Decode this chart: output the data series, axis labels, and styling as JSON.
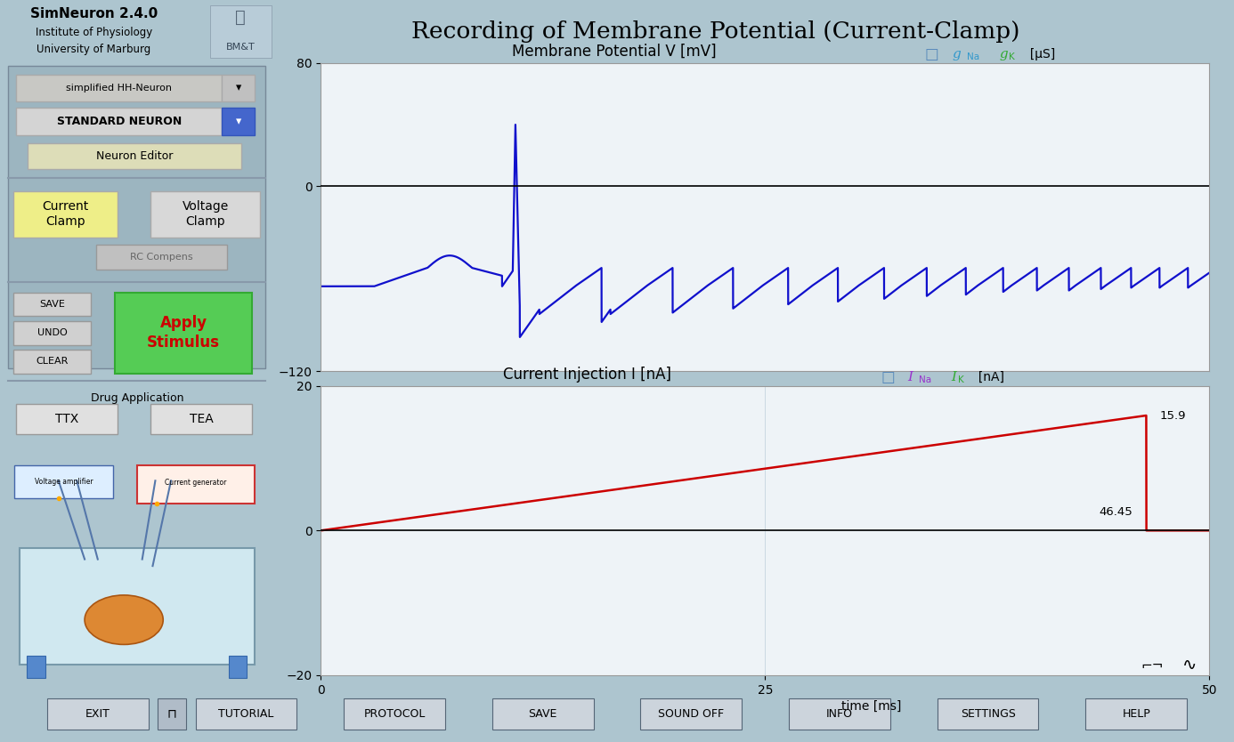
{
  "title": "Recording of Membrane Potential (Current-Clamp)",
  "bg_color": "#adc5cf",
  "plot_bg_color": "#eef3f7",
  "grid_color": "#c5d5de",
  "header_bg": "#b8ccd8",
  "panel_bg": "#adc5cf",
  "panel_inner_bg": "#9fb8c4",
  "top_plot": {
    "title": "Membrane Potential V [mV]",
    "ylim": [
      -120,
      80
    ],
    "yticks": [
      -120,
      0,
      80
    ],
    "xlim": [
      0,
      50
    ],
    "line_color": "#1010cc",
    "line_width": 1.6
  },
  "bottom_plot": {
    "title": "Current Injection I [nA]",
    "ylim": [
      -20,
      20
    ],
    "yticks": [
      -20,
      0,
      20
    ],
    "xlim": [
      0,
      50
    ],
    "xticks": [
      0,
      25,
      50
    ],
    "xlabel": "time [ms]",
    "line_color": "#cc0000",
    "line_width": 1.8,
    "ramp_end_t": 46.45,
    "ramp_end_v": 15.9
  },
  "simneuron_title": "SimNeuron 2.4.0",
  "institute_line1": "Institute of Physiology",
  "institute_line2": "University of Marburg",
  "dropdown1": "simplified HH-Neuron",
  "dropdown2": "STANDARD NEURON",
  "btn_neuron_editor": "Neuron Editor",
  "btn_cc": "Current\nClamp",
  "btn_vc": "Voltage\nClamp",
  "btn_rc": "RC Compens",
  "btn_save": "SAVE",
  "btn_undo": "UNDO",
  "btn_clear": "CLEAR",
  "btn_apply_line1": "Apply",
  "btn_apply_line2": "Stimulus",
  "drug_label": "Drug Application",
  "btn_ttx": "TTX",
  "btn_tea": "TEA",
  "bottom_bar_buttons": [
    "EXIT",
    "",
    "TUTORIAL",
    "PROTOCOL",
    "SAVE",
    "SOUND OFF",
    "INFO",
    "SETTINGS",
    "HELP"
  ],
  "bottom_bar_bg": "#8899aa"
}
